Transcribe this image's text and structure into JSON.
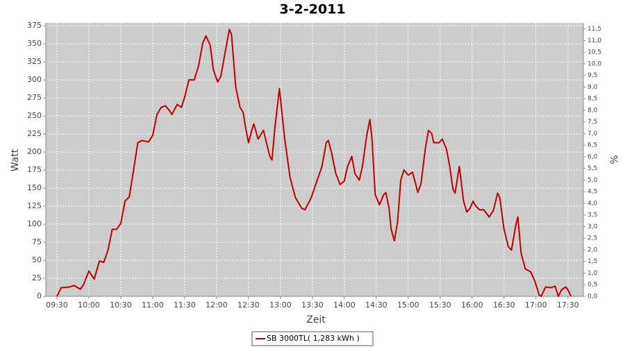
{
  "chart_data": {
    "type": "line",
    "title": "3-2-2011",
    "x_label": "Zeit",
    "y_label": "Watt",
    "y2_label": "%",
    "x": [
      570,
      574,
      582,
      586,
      592,
      595,
      600,
      605,
      610,
      614,
      618,
      622,
      626,
      630,
      634,
      638,
      642,
      646,
      650,
      656,
      660,
      664,
      668,
      672,
      676,
      678,
      683,
      687,
      690,
      694,
      699,
      703,
      707,
      710,
      714,
      717,
      721,
      724,
      728,
      732,
      734,
      738,
      742,
      745,
      747,
      750,
      753,
      755,
      759,
      764,
      770,
      772,
      775,
      779,
      784,
      789,
      794,
      800,
      803,
      809,
      814,
      819,
      823,
      825,
      828,
      832,
      836,
      840,
      843,
      847,
      850,
      854,
      857,
      861,
      864,
      866,
      869,
      873,
      877,
      879,
      882,
      884,
      887,
      890,
      893,
      896,
      900,
      904,
      907,
      909,
      912,
      916,
      919,
      922,
      924,
      929,
      932,
      936,
      939,
      942,
      944,
      948,
      952,
      955,
      958,
      961,
      963,
      967,
      971,
      976,
      980,
      984,
      986,
      990,
      994,
      997,
      1001,
      1003,
      1006,
      1010,
      1015,
      1019,
      1023,
      1025,
      1029,
      1034,
      1038,
      1041,
      1044,
      1048,
      1050,
      1053
    ],
    "series": [
      {
        "name": "SB 3000TL( 1,283 kWh )",
        "color": "#c00000",
        "values": [
          0,
          12,
          13,
          15,
          10,
          16,
          35,
          24,
          49,
          47,
          64,
          93,
          93,
          101,
          132,
          138,
          175,
          213,
          216,
          214,
          223,
          252,
          262,
          264,
          257,
          252,
          266,
          262,
          276,
          300,
          300,
          319,
          351,
          361,
          348,
          314,
          297,
          305,
          338,
          370,
          363,
          290,
          262,
          255,
          236,
          213,
          230,
          239,
          218,
          230,
          194,
          189,
          237,
          288,
          218,
          165,
          137,
          122,
          120,
          137,
          159,
          180,
          213,
          216,
          199,
          170,
          155,
          160,
          180,
          194,
          170,
          161,
          180,
          223,
          245,
          218,
          141,
          127,
          141,
          144,
          122,
          93,
          77,
          103,
          161,
          175,
          168,
          172,
          156,
          144,
          156,
          204,
          230,
          226,
          213,
          213,
          218,
          204,
          180,
          149,
          143,
          180,
          132,
          117,
          122,
          132,
          126,
          120,
          120,
          110,
          119,
          143,
          137,
          93,
          69,
          64,
          98,
          110,
          60,
          38,
          34,
          21,
          2,
          0,
          13,
          12,
          14,
          0,
          9,
          13,
          9,
          0
        ]
      }
    ],
    "xlim": [
      559.6,
      1064.5
    ],
    "xticks": [
      {
        "value": 570,
        "label": "09:30"
      },
      {
        "value": 600,
        "label": "10:00"
      },
      {
        "value": 630,
        "label": "10:30"
      },
      {
        "value": 660,
        "label": "11:00"
      },
      {
        "value": 690,
        "label": "11:30"
      },
      {
        "value": 720,
        "label": "12:00"
      },
      {
        "value": 750,
        "label": "12:30"
      },
      {
        "value": 780,
        "label": "13:00"
      },
      {
        "value": 810,
        "label": "13:30"
      },
      {
        "value": 840,
        "label": "14:00"
      },
      {
        "value": 870,
        "label": "14:30"
      },
      {
        "value": 900,
        "label": "15:00"
      },
      {
        "value": 930,
        "label": "15:30"
      },
      {
        "value": 960,
        "label": "16:00"
      },
      {
        "value": 990,
        "label": "16:30"
      },
      {
        "value": 1020,
        "label": "17:00"
      },
      {
        "value": 1050,
        "label": "17:30"
      }
    ],
    "ylim": [
      0,
      379
    ],
    "yticks": [
      0,
      25,
      50,
      75,
      100,
      125,
      150,
      175,
      200,
      225,
      250,
      275,
      300,
      325,
      350,
      375
    ],
    "y2lim": [
      0,
      11.76
    ],
    "y2ticks": [
      {
        "value": 0,
        "label": "0,0"
      },
      {
        "value": 0.5,
        "label": "0,5"
      },
      {
        "value": 1,
        "label": "1,0"
      },
      {
        "value": 1.5,
        "label": "1,5"
      },
      {
        "value": 2,
        "label": "2,0"
      },
      {
        "value": 2.5,
        "label": "2,5"
      },
      {
        "value": 3,
        "label": "3,0"
      },
      {
        "value": 3.5,
        "label": "3,5"
      },
      {
        "value": 4,
        "label": "4,0"
      },
      {
        "value": 4.5,
        "label": "4,5"
      },
      {
        "value": 5,
        "label": "5,0"
      },
      {
        "value": 5.5,
        "label": "5,5"
      },
      {
        "value": 6,
        "label": "6,0"
      },
      {
        "value": 6.5,
        "label": "6,5"
      },
      {
        "value": 7,
        "label": "7,0"
      },
      {
        "value": 7.5,
        "label": "7,5"
      },
      {
        "value": 8,
        "label": "8,0"
      },
      {
        "value": 8.5,
        "label": "8,5"
      },
      {
        "value": 9,
        "label": "9,0"
      },
      {
        "value": 9.5,
        "label": "9,5"
      },
      {
        "value": 10,
        "label": "10,0"
      },
      {
        "value": 10.5,
        "label": "10,5"
      },
      {
        "value": 11,
        "label": "11,0"
      },
      {
        "value": 11.5,
        "label": "11,5"
      }
    ],
    "grid": true,
    "plot_background": "#cccccc",
    "legend": "bottom"
  }
}
